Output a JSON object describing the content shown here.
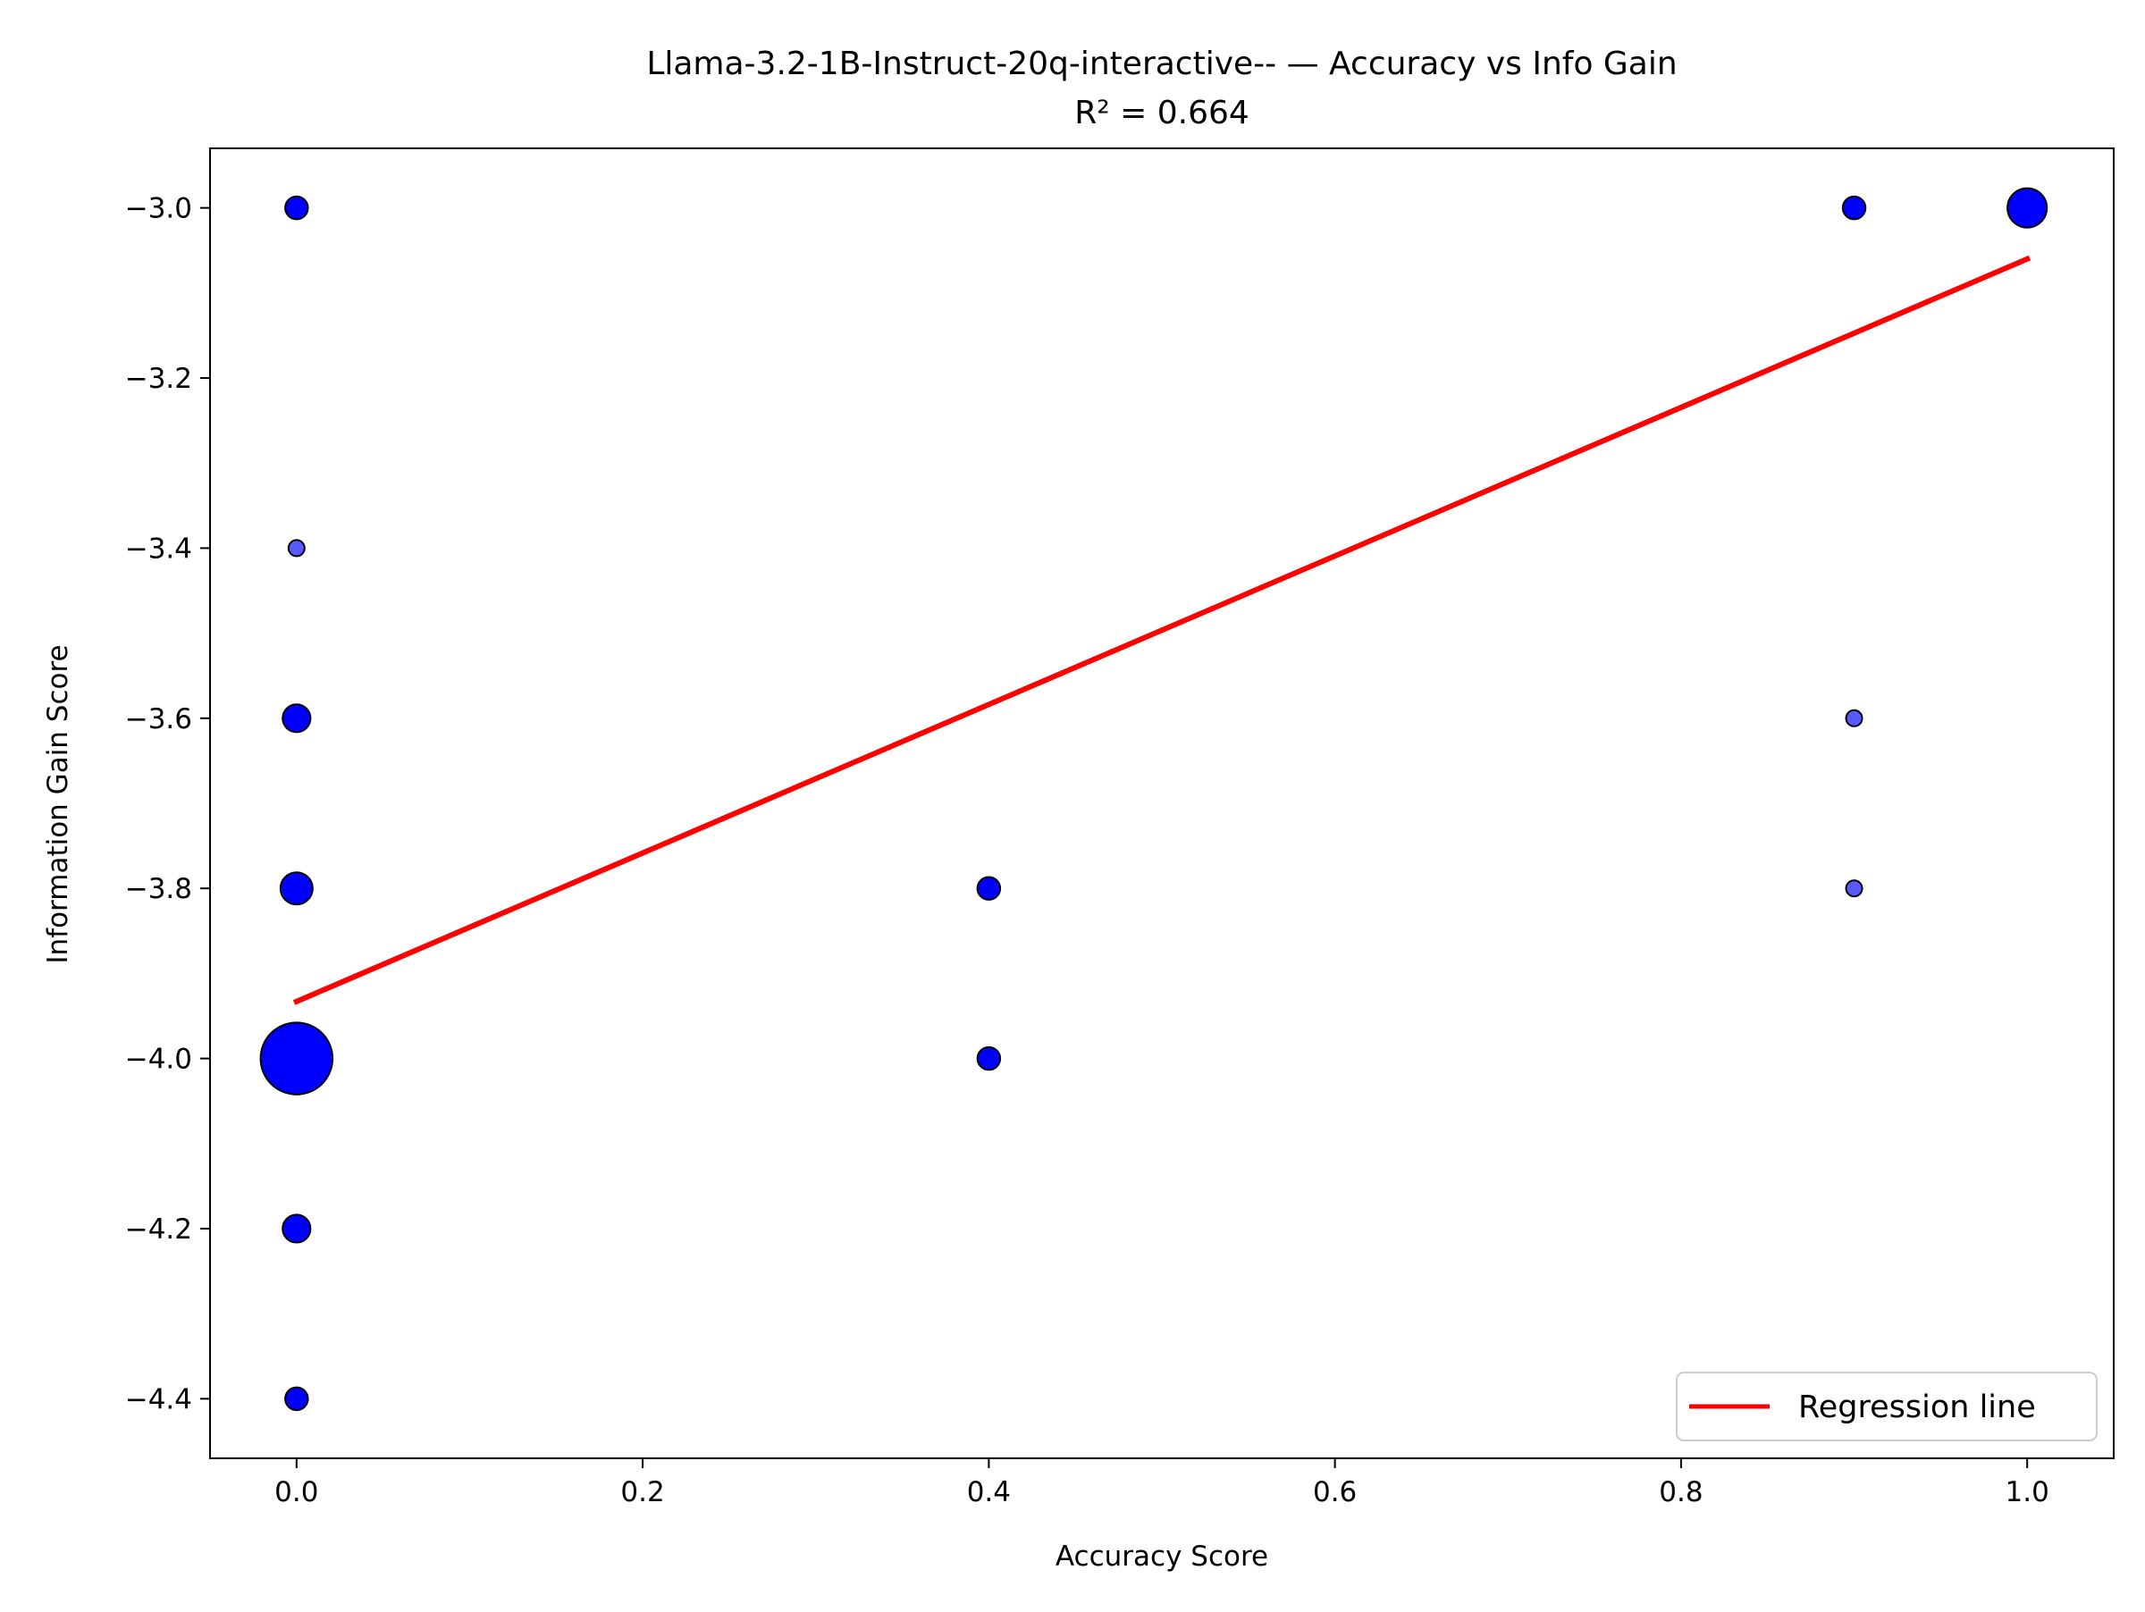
{
  "chart_data": {
    "type": "scatter",
    "title": "Llama-3.2-1B-Instruct-20q-interactive-- — Accuracy vs Info Gain",
    "subtitle": "R² = 0.664",
    "xlabel": "Accuracy Score",
    "ylabel": "Information Gain Score",
    "xlim": [
      -0.05,
      1.05
    ],
    "ylim": [
      -4.47,
      -2.93
    ],
    "xticks": [
      0.0,
      0.2,
      0.4,
      0.6,
      0.8,
      1.0
    ],
    "xtick_labels": [
      "0.0",
      "0.2",
      "0.4",
      "0.6",
      "0.8",
      "1.0"
    ],
    "yticks": [
      -3.0,
      -3.2,
      -3.4,
      -3.6,
      -3.8,
      -4.0,
      -4.2,
      -4.4
    ],
    "ytick_labels": [
      "−3.0",
      "−3.2",
      "−3.4",
      "−3.6",
      "−3.8",
      "−4.0",
      "−4.2",
      "−4.4"
    ],
    "grid": false,
    "legend_position": "bottom-right",
    "series": [
      {
        "color": "#0000ff",
        "points": [
          {
            "x": 0.0,
            "y": -3.0,
            "count": 2
          },
          {
            "x": 0.0,
            "y": -3.4,
            "count": 1
          },
          {
            "x": 0.0,
            "y": -3.6,
            "count": 3
          },
          {
            "x": 0.0,
            "y": -3.8,
            "count": 4
          },
          {
            "x": 0.0,
            "y": -4.0,
            "count": 20
          },
          {
            "x": 0.0,
            "y": -4.2,
            "count": 3
          },
          {
            "x": 0.0,
            "y": -4.4,
            "count": 2
          },
          {
            "x": 0.4,
            "y": -3.8,
            "count": 2
          },
          {
            "x": 0.4,
            "y": -4.0,
            "count": 2
          },
          {
            "x": 0.9,
            "y": -3.0,
            "count": 2
          },
          {
            "x": 0.9,
            "y": -3.6,
            "count": 1
          },
          {
            "x": 0.9,
            "y": -3.8,
            "count": 1
          },
          {
            "x": 1.0,
            "y": -3.0,
            "count": 6
          }
        ]
      }
    ],
    "regression": {
      "name": "Regression line",
      "color": "#ff0000",
      "x": [
        0.0,
        1.0
      ],
      "y": [
        -3.933,
        -3.06
      ]
    }
  }
}
